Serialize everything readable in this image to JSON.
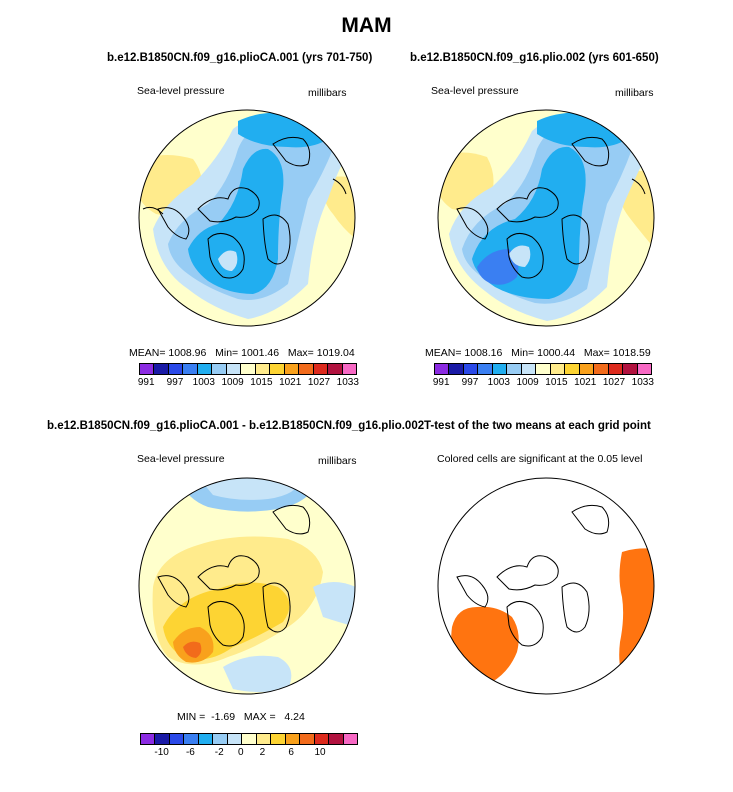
{
  "figure": {
    "title": "MAM",
    "colors": {
      "p991": "#8b2be2",
      "p994": "#1a1aa6",
      "p997": "#2a49e8",
      "p1000": "#3a7ff2",
      "p1003": "#21aef0",
      "p1006": "#97ccf4",
      "p1009": "#c7e4f8",
      "p1012": "#ffffcc",
      "p1015": "#ffeb8c",
      "p1018": "#fdd433",
      "p1021": "#f9a11c",
      "p1024": "#f26b1b",
      "p1027": "#dd2a1d",
      "p1030": "#b1123f",
      "p1033": "#f768c4",
      "sig": "#ff7410",
      "land": "#000000"
    }
  },
  "panels": [
    {
      "id": "panel1",
      "title": "b.e12.B1850CN.f09_g16.plioCA.001 (yrs 701-750)",
      "left_label": "Sea-level pressure",
      "right_label": "millibars",
      "stats": {
        "mean_label": "MEAN=",
        "mean": "1008.96",
        "min_label": "Min=",
        "min": "1001.46",
        "max_label": "Max=",
        "max": "1019.04"
      }
    },
    {
      "id": "panel2",
      "title": "b.e12.B1850CN.f09_g16.plio.002 (yrs 601-650)",
      "left_label": "Sea-level pressure",
      "right_label": "millibars",
      "stats": {
        "mean_label": "MEAN=",
        "mean": "1008.16",
        "min_label": "Min=",
        "min": "1000.44",
        "max_label": "Max=",
        "max": "1018.59"
      }
    },
    {
      "id": "panel3",
      "title": "b.e12.B1850CN.f09_g16.plioCA.001 - b.e12.B1850CN.f09_g16.plio.002",
      "left_label": "Sea-level pressure",
      "right_label": "millibars",
      "stats": {
        "min_label": "MIN =",
        "min": "-1.69",
        "max_label": "MAX =",
        "max": "4.24"
      }
    },
    {
      "id": "panel4",
      "title": "T-test of the two means at each grid point",
      "subtitle": "Colored cells are significant at the 0.05 level"
    }
  ],
  "chart_data": [
    {
      "type": "heatmap",
      "projection": "north-polar-stereographic",
      "variable": "Sea-level pressure",
      "units": "millibars",
      "title": "b.e12.B1850CN.f09_g16.plioCA.001 (yrs 701-750)",
      "mean": 1008.96,
      "min": 1001.46,
      "max": 1019.04,
      "levels": [
        991,
        994,
        997,
        1000,
        1003,
        1006,
        1009,
        1012,
        1015,
        1018,
        1021,
        1024,
        1027,
        1030,
        1033
      ],
      "colorbar_ticks": [
        "991",
        "997",
        "1003",
        "1009",
        "1015",
        "1021",
        "1027",
        "1033"
      ]
    },
    {
      "type": "heatmap",
      "projection": "north-polar-stereographic",
      "variable": "Sea-level pressure",
      "units": "millibars",
      "title": "b.e12.B1850CN.f09_g16.plio.002 (yrs 601-650)",
      "mean": 1008.16,
      "min": 1000.44,
      "max": 1018.59,
      "levels": [
        991,
        994,
        997,
        1000,
        1003,
        1006,
        1009,
        1012,
        1015,
        1018,
        1021,
        1024,
        1027,
        1030,
        1033
      ],
      "colorbar_ticks": [
        "991",
        "997",
        "1003",
        "1009",
        "1015",
        "1021",
        "1027",
        "1033"
      ]
    },
    {
      "type": "heatmap",
      "projection": "north-polar-stereographic",
      "variable": "Sea-level pressure difference",
      "units": "millibars",
      "min": -1.69,
      "max": 4.24,
      "levels": [
        -12,
        -10,
        -8,
        -6,
        -4,
        -2,
        -1,
        0,
        1,
        2,
        4,
        6,
        8,
        10,
        12
      ],
      "colorbar_ticks": [
        "-10",
        "-6",
        "-2",
        "0",
        "2",
        "6",
        "10"
      ]
    },
    {
      "type": "heatmap",
      "projection": "north-polar-stereographic",
      "variable": "T-test significance",
      "note": "Colored cells are significant at the 0.05 level"
    }
  ]
}
